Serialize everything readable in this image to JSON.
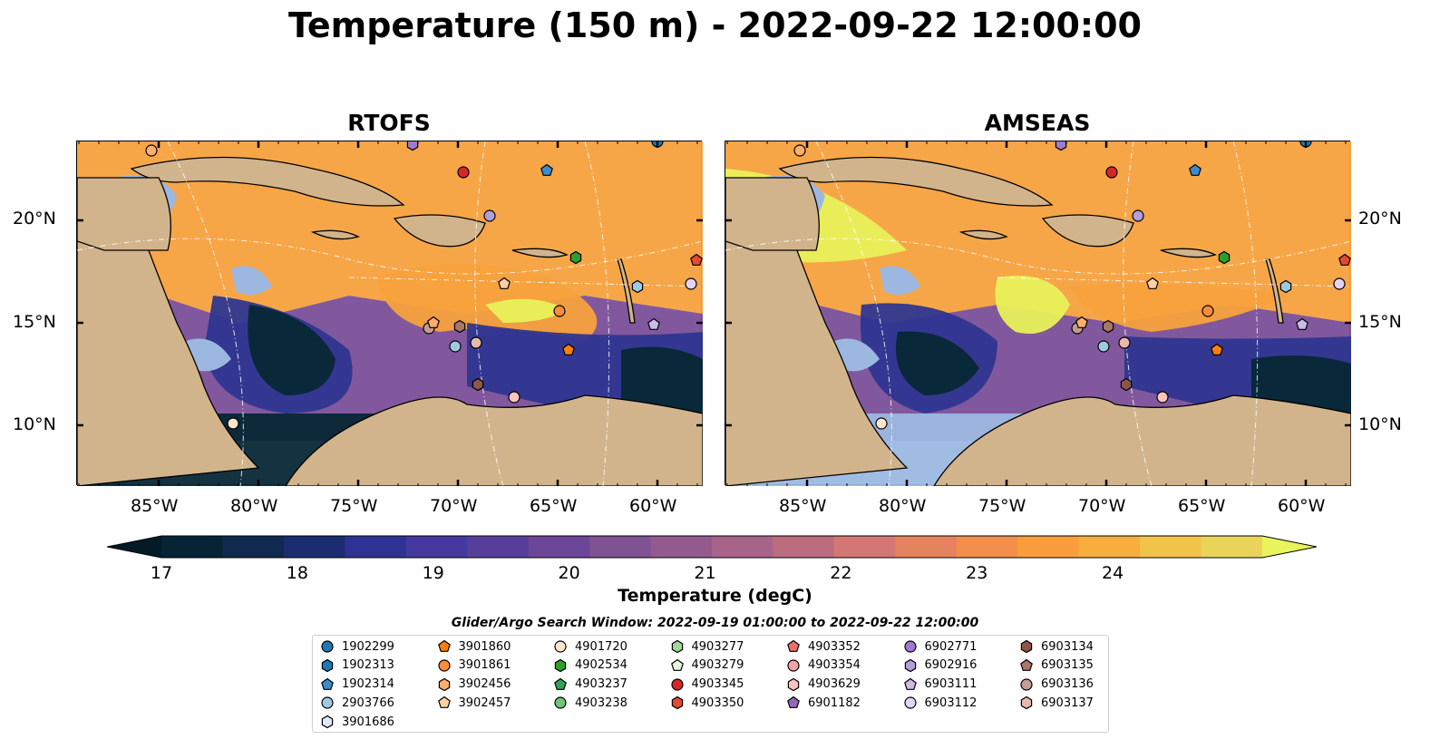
{
  "title": "Temperature (150 m) - 2022-09-22 12:00:00",
  "panels": [
    {
      "title": "RTOFS"
    },
    {
      "title": "AMSEAS"
    }
  ],
  "axes": {
    "lon_ticks": [
      "85°W",
      "80°W",
      "75°W",
      "70°W",
      "65°W",
      "60°W"
    ],
    "lat_ticks": [
      "20°N",
      "15°N",
      "10°N"
    ]
  },
  "colorbar": {
    "ticks": [
      "17",
      "18",
      "19",
      "20",
      "21",
      "22",
      "23",
      "24"
    ],
    "label": "Temperature (degC)",
    "colors": [
      "#062435",
      "#0f2a4e",
      "#1c2c70",
      "#2e3393",
      "#44399f",
      "#573e9b",
      "#6b4699",
      "#7f5294",
      "#935b8d",
      "#a8638a",
      "#bd6c80",
      "#d37774",
      "#e6835f",
      "#f48e4b",
      "#f99d3e",
      "#f8ae3c",
      "#f2c34a",
      "#e8d45a"
    ],
    "under_color": "#041a26",
    "over_color": "#e9f45d"
  },
  "legend": {
    "title": "Glider/Argo Search Window: 2022-09-19 01:00:00 to 2022-09-22 12:00:00",
    "columns": [
      [
        {
          "id": "1902299",
          "marker": "circle",
          "color": "#1f77b4"
        },
        {
          "id": "1902313",
          "marker": "hexagon",
          "color": "#1f77b4"
        },
        {
          "id": "1902314",
          "marker": "pentagon",
          "color": "#3a8ccf"
        },
        {
          "id": "2903766",
          "marker": "circle",
          "color": "#9ecae1"
        },
        {
          "id": "3901686",
          "marker": "hexagon",
          "color": "#deebf7"
        }
      ],
      [
        {
          "id": "3901860",
          "marker": "pentagon",
          "color": "#ff7f0e"
        },
        {
          "id": "3901861",
          "marker": "circle",
          "color": "#fd8d3c"
        },
        {
          "id": "3902456",
          "marker": "hexagon",
          "color": "#fdae6b"
        },
        {
          "id": "3902457",
          "marker": "pentagon",
          "color": "#fdd0a2"
        }
      ],
      [
        {
          "id": "4901720",
          "marker": "circle",
          "color": "#fee6ce"
        },
        {
          "id": "4902534",
          "marker": "hexagon",
          "color": "#2ca02c"
        },
        {
          "id": "4903237",
          "marker": "pentagon",
          "color": "#31a354"
        },
        {
          "id": "4903238",
          "marker": "circle",
          "color": "#74c476"
        }
      ],
      [
        {
          "id": "4903277",
          "marker": "hexagon",
          "color": "#a1d99b"
        },
        {
          "id": "4903279",
          "marker": "pentagon",
          "color": "#e5f5e0"
        },
        {
          "id": "4903345",
          "marker": "circle",
          "color": "#d62728"
        },
        {
          "id": "4903350",
          "marker": "hexagon",
          "color": "#e34a33"
        }
      ],
      [
        {
          "id": "4903352",
          "marker": "pentagon",
          "color": "#ef6f6c"
        },
        {
          "id": "4903354",
          "marker": "circle",
          "color": "#f4a3a3"
        },
        {
          "id": "4903629",
          "marker": "hexagon",
          "color": "#fcc5c0"
        },
        {
          "id": "6901182",
          "marker": "pentagon",
          "color": "#9467bd"
        }
      ],
      [
        {
          "id": "6902771",
          "marker": "circle",
          "color": "#9e7bd0"
        },
        {
          "id": "6902916",
          "marker": "hexagon",
          "color": "#b39ddb"
        },
        {
          "id": "6903111",
          "marker": "pentagon",
          "color": "#cdb9ea"
        },
        {
          "id": "6903112",
          "marker": "circle",
          "color": "#e3d4f5"
        }
      ],
      [
        {
          "id": "6903134",
          "marker": "hexagon",
          "color": "#8c564b"
        },
        {
          "id": "6903135",
          "marker": "pentagon",
          "color": "#a9766a"
        },
        {
          "id": "6903136",
          "marker": "circle",
          "color": "#c49c94"
        },
        {
          "id": "6903137",
          "marker": "hexagon",
          "color": "#e7b9ad"
        }
      ]
    ]
  },
  "map_colors": {
    "land": "#d2b48c",
    "shallow": "#9cb8e0",
    "deep": "#072735",
    "warm": "#f7a13d",
    "mid": "#7a4f98",
    "cool": "#2f3690",
    "hot": "#e8f15a"
  }
}
